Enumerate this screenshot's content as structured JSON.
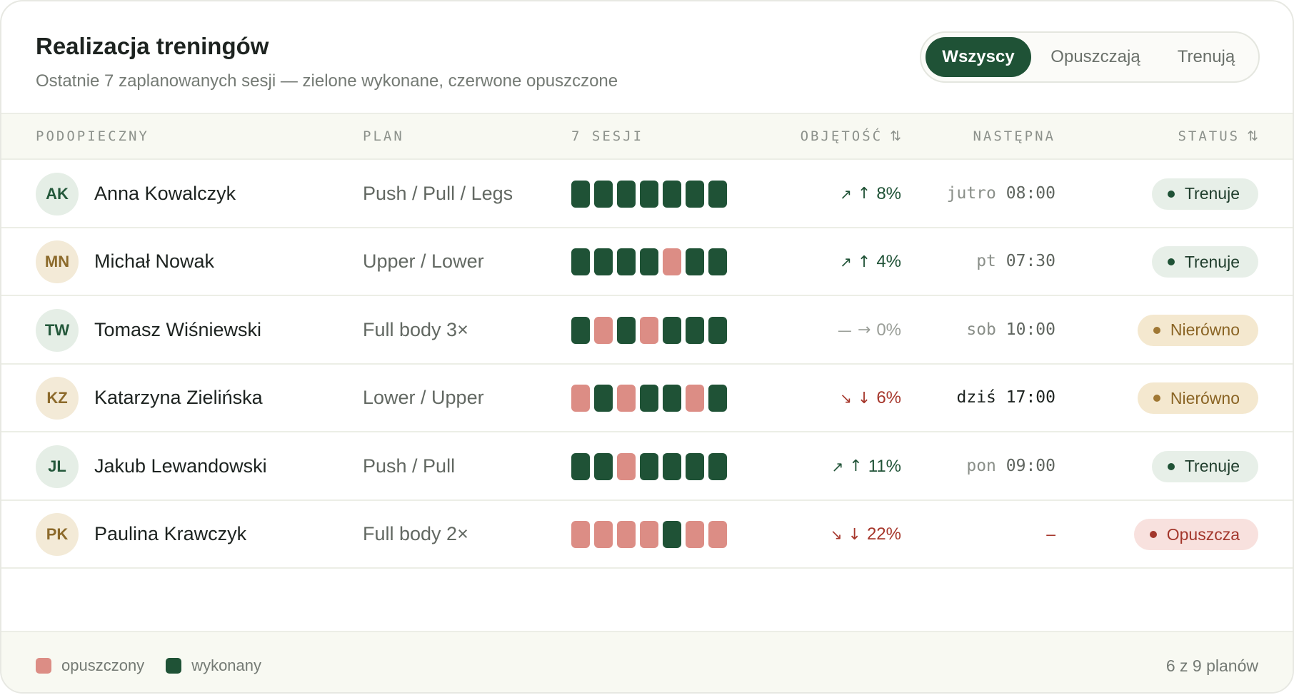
{
  "header": {
    "title": "Realizacja treningów",
    "subtitle": "Ostatnie 7 zaplanowanych sesji — zielone wykonane, czerwone opuszczone"
  },
  "filters": {
    "options": [
      "Wszyscy",
      "Opuszczają",
      "Trenują"
    ],
    "selected": "Wszyscy"
  },
  "columns": {
    "name": "PODOPIECZNY",
    "plan": "PLAN",
    "sessions": "7 SESJI",
    "volume": "OBJĘTOŚĆ",
    "next": "NASTĘPNA",
    "status": "STATUS"
  },
  "sort_icon": "⇅",
  "rows": [
    {
      "initials": "AK",
      "avatar_tone": "green",
      "name": "Anna Kowalczyk",
      "plan": "Push / Pull / Legs",
      "sessions": [
        1,
        1,
        1,
        1,
        1,
        1,
        1
      ],
      "trend": "up",
      "trend_icon": "↗",
      "arrow": "↑",
      "volume": "8%",
      "next_day": "jutro",
      "next_time": "08:00",
      "status": "Trenuje",
      "status_kind": "trenuje"
    },
    {
      "initials": "MN",
      "avatar_tone": "beige",
      "name": "Michał Nowak",
      "plan": "Upper / Lower",
      "sessions": [
        1,
        1,
        1,
        1,
        0,
        1,
        1
      ],
      "trend": "up",
      "trend_icon": "↗",
      "arrow": "↑",
      "volume": "4%",
      "next_day": "pt",
      "next_time": "07:30",
      "status": "Trenuje",
      "status_kind": "trenuje"
    },
    {
      "initials": "TW",
      "avatar_tone": "green",
      "name": "Tomasz Wiśniewski",
      "plan": "Full body 3×",
      "sessions": [
        1,
        0,
        1,
        0,
        1,
        1,
        1
      ],
      "trend": "flat",
      "trend_icon": "—",
      "arrow": "→",
      "volume": "0%",
      "next_day": "sob",
      "next_time": "10:00",
      "status": "Nierówno",
      "status_kind": "nierowno"
    },
    {
      "initials": "KZ",
      "avatar_tone": "beige",
      "name": "Katarzyna Zielińska",
      "plan": "Lower / Upper",
      "sessions": [
        0,
        1,
        0,
        1,
        1,
        0,
        1
      ],
      "trend": "down",
      "trend_icon": "↘",
      "arrow": "↓",
      "volume": "6%",
      "next_day": "dziś",
      "next_time": "17:00",
      "status": "Nierówno",
      "status_kind": "nierowno"
    },
    {
      "initials": "JL",
      "avatar_tone": "green",
      "name": "Jakub Lewandowski",
      "plan": "Push / Pull",
      "sessions": [
        1,
        1,
        0,
        1,
        1,
        1,
        1
      ],
      "trend": "up",
      "trend_icon": "↗",
      "arrow": "↑",
      "volume": "11%",
      "next_day": "pon",
      "next_time": "09:00",
      "status": "Trenuje",
      "status_kind": "trenuje"
    },
    {
      "initials": "PK",
      "avatar_tone": "beige",
      "name": "Paulina Krawczyk",
      "plan": "Full body 2×",
      "sessions": [
        0,
        0,
        0,
        0,
        1,
        0,
        0
      ],
      "trend": "down",
      "trend_icon": "↘",
      "arrow": "↓",
      "volume": "22%",
      "next_day": "",
      "next_time": "–",
      "status": "Opuszcza",
      "status_kind": "opuszcza"
    }
  ],
  "legend": {
    "missed": "opuszczony",
    "done": "wykonany"
  },
  "footer_count": "6 z 9 planów",
  "colors": {
    "done": "#1f5236",
    "missed": "#dc8d85",
    "accent": "#1f5236"
  }
}
